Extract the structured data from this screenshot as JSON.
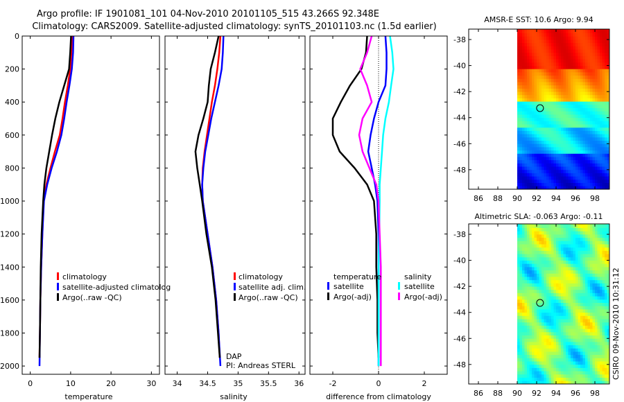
{
  "header": {
    "line1": "Argo profile: IF 1901081_101 04-Nov-2010 20101105_515 43.266S 92.348E",
    "line2": "Climatology: CARS2009. Satellite-adjusted climatology: synTS_20101103.nc (1.5d earlier)"
  },
  "side_label": "CSIRO 09-Nov-2010 10:31:12",
  "chart_data": [
    {
      "id": "temperature",
      "type": "line",
      "xlabel": "temperature",
      "ylabel": "",
      "xlim": [
        -2,
        32
      ],
      "ylim": [
        2050,
        0
      ],
      "y_ticks": [
        0,
        200,
        400,
        600,
        800,
        1000,
        1200,
        1400,
        1600,
        1800,
        2000
      ],
      "x_ticks": [
        0,
        10,
        20,
        30
      ],
      "series": [
        {
          "name": "climatology",
          "color": "#ff0000",
          "x": [
            10.4,
            10.2,
            9.9,
            9.3,
            8.6,
            8.0,
            7.3,
            6.1,
            5.0,
            4.0,
            3.3,
            3.0,
            2.7,
            2.5,
            2.4,
            2.3
          ],
          "y": [
            0,
            100,
            200,
            300,
            400,
            500,
            600,
            700,
            800,
            900,
            1000,
            1200,
            1400,
            1600,
            1800,
            1950
          ]
        },
        {
          "name": "satellite-adjusted climatology",
          "color": "#0000ff",
          "x": [
            10.7,
            10.6,
            10.3,
            9.7,
            9.0,
            8.4,
            7.7,
            6.6,
            5.3,
            4.2,
            3.4,
            3.0,
            2.7,
            2.5,
            2.4,
            2.3
          ],
          "y": [
            0,
            100,
            200,
            300,
            400,
            500,
            600,
            700,
            800,
            900,
            1000,
            1200,
            1400,
            1600,
            1800,
            2000
          ]
        },
        {
          "name": "Argo(..raw -QC)",
          "color": "#000000",
          "x": [
            10.1,
            9.9,
            9.6,
            8.4,
            7.2,
            6.2,
            5.4,
            4.7,
            4.0,
            3.5,
            3.2,
            2.8,
            2.6,
            2.5,
            2.4,
            2.3
          ],
          "y": [
            0,
            100,
            200,
            300,
            400,
            500,
            600,
            700,
            800,
            900,
            1000,
            1200,
            1400,
            1600,
            1800,
            1950
          ]
        }
      ],
      "legend": [
        "climatology",
        "satellite-adjusted climatolog",
        "Argo(..raw -QC)"
      ]
    },
    {
      "id": "salinity",
      "type": "line",
      "xlabel": "salinity",
      "ylabel": "",
      "xlim": [
        33.8,
        36.1
      ],
      "ylim": [
        2050,
        0
      ],
      "x_ticks": [
        34,
        34.5,
        35,
        35.5,
        36
      ],
      "x_tick_labels": [
        "34",
        "34.5",
        "35",
        "35.5",
        "36"
      ],
      "series": [
        {
          "name": "climatology",
          "color": "#ff0000",
          "x": [
            34.71,
            34.69,
            34.66,
            34.62,
            34.57,
            34.53,
            34.49,
            34.45,
            34.42,
            34.41,
            34.42,
            34.5,
            34.58,
            34.64,
            34.68,
            34.7
          ],
          "y": [
            0,
            100,
            200,
            300,
            400,
            500,
            600,
            700,
            800,
            900,
            1000,
            1200,
            1400,
            1600,
            1800,
            1950
          ]
        },
        {
          "name": "satellite adj. clim.",
          "color": "#0000ff",
          "x": [
            34.76,
            34.75,
            34.73,
            34.68,
            34.62,
            34.56,
            34.51,
            34.46,
            34.43,
            34.41,
            34.42,
            34.5,
            34.58,
            34.64,
            34.68,
            34.71
          ],
          "y": [
            0,
            100,
            200,
            300,
            400,
            500,
            600,
            700,
            800,
            900,
            1000,
            1200,
            1400,
            1600,
            1800,
            2000
          ]
        },
        {
          "name": "Argo(..raw -QC)",
          "color": "#000000",
          "x": [
            34.68,
            34.62,
            34.55,
            34.52,
            34.5,
            34.43,
            34.35,
            34.3,
            34.33,
            34.37,
            34.41,
            34.48,
            34.57,
            34.63,
            34.67,
            34.7
          ],
          "y": [
            0,
            100,
            200,
            300,
            400,
            500,
            600,
            700,
            800,
            900,
            1000,
            1200,
            1400,
            1600,
            1800,
            1950
          ]
        }
      ],
      "legend": [
        "climatology",
        "satellite adj. clim.",
        "Argo(..raw -QC)"
      ],
      "annotations": [
        "DAP",
        "PI: Andreas STERL"
      ]
    },
    {
      "id": "difference",
      "type": "line",
      "xlabel": "difference from climatology",
      "ylabel": "",
      "xlim": [
        -3,
        3
      ],
      "ylim": [
        2050,
        0
      ],
      "x_ticks": [
        -2,
        0,
        2
      ],
      "series": [
        {
          "name": "temperature satellite",
          "color": "#0000ff",
          "x": [
            0.3,
            0.35,
            0.35,
            0.3,
            0.0,
            -0.2,
            -0.35,
            -0.45,
            -0.3,
            -0.15,
            -0.05,
            0,
            0,
            0,
            0,
            0
          ],
          "y": [
            0,
            100,
            200,
            300,
            400,
            500,
            600,
            700,
            800,
            900,
            1000,
            1200,
            1400,
            1600,
            1800,
            2000
          ]
        },
        {
          "name": "temperature Argo(-adj)",
          "color": "#000000",
          "x": [
            -0.5,
            -0.55,
            -0.75,
            -1.25,
            -1.65,
            -2.0,
            -2.0,
            -1.7,
            -1.05,
            -0.5,
            -0.2,
            -0.1,
            -0.1,
            -0.05,
            -0.05,
            0
          ],
          "y": [
            0,
            100,
            200,
            300,
            400,
            500,
            600,
            700,
            800,
            900,
            1000,
            1200,
            1400,
            1600,
            1800,
            1950
          ]
        },
        {
          "name": "salinity satellite",
          "color": "#00ffff",
          "x": [
            0.5,
            0.6,
            0.65,
            0.55,
            0.45,
            0.3,
            0.2,
            0.15,
            0.1,
            0.05,
            0.05,
            0.03,
            0.0,
            0.0,
            0.0,
            0.0
          ],
          "y": [
            0,
            100,
            200,
            300,
            400,
            500,
            600,
            700,
            800,
            900,
            1000,
            1200,
            1400,
            1600,
            1800,
            2000
          ]
        },
        {
          "name": "salinity Argo(-adj)",
          "color": "#ff00ff",
          "x": [
            -0.3,
            -0.5,
            -0.8,
            -0.5,
            -0.3,
            -0.7,
            -0.85,
            -0.7,
            -0.4,
            -0.1,
            0.0,
            0.05,
            0.1,
            0.1,
            0.1,
            0.1
          ],
          "y": [
            0,
            100,
            200,
            300,
            400,
            500,
            600,
            700,
            800,
            900,
            1000,
            1200,
            1400,
            1600,
            1800,
            2000
          ]
        }
      ],
      "legend_headers": [
        "temperature",
        "salinity"
      ],
      "legend": [
        "satellite",
        "Argo(-adj)",
        "satellite",
        "Argo(-adj)"
      ]
    },
    {
      "id": "sst_map",
      "type": "heatmap",
      "title": "AMSR-E SST: 10.6  Argo: 9.94",
      "xlim": [
        85,
        99.5
      ],
      "ylim": [
        -49.5,
        -37.2
      ],
      "x_ticks": [
        86,
        88,
        90,
        92,
        94,
        96,
        98
      ],
      "y_ticks": [
        -38,
        -40,
        -42,
        -44,
        -46,
        -48
      ],
      "data_extent_x": [
        90,
        99.5
      ],
      "float_position": {
        "lon": 92.35,
        "lat": -43.27
      }
    },
    {
      "id": "sla_map",
      "type": "heatmap",
      "title": "Altimetric SLA: -0.063  Argo: -0.11",
      "xlim": [
        85,
        99.5
      ],
      "ylim": [
        -49.5,
        -37.2
      ],
      "x_ticks": [
        86,
        88,
        90,
        92,
        94,
        96,
        98
      ],
      "y_ticks": [
        -38,
        -40,
        -42,
        -44,
        -46,
        -48
      ],
      "data_extent_x": [
        90,
        99.5
      ],
      "float_position": {
        "lon": 92.35,
        "lat": -43.27
      }
    }
  ]
}
